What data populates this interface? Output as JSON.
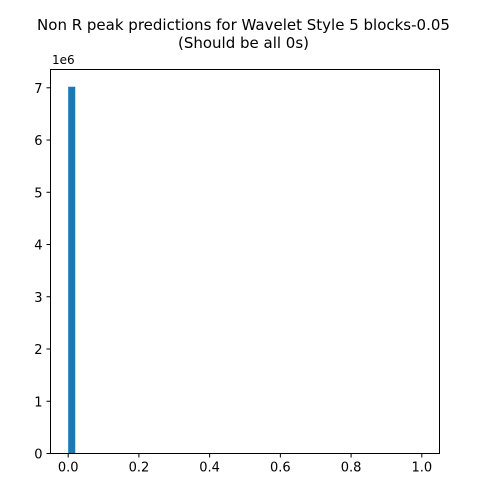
{
  "chart_data": {
    "type": "bar",
    "title_line1": "Non R peak predictions for Wavelet Style 5 blocks-0.05",
    "title_line2": "(Should be all 0s)",
    "xlabel": "",
    "ylabel": "",
    "y_offset_label": "1e6",
    "xlim": [
      -0.05,
      1.05
    ],
    "ylim": [
      0,
      7350000
    ],
    "x_ticks": [
      0.0,
      0.2,
      0.4,
      0.6,
      0.8,
      1.0
    ],
    "x_tick_labels": [
      "0.0",
      "0.2",
      "0.4",
      "0.6",
      "0.8",
      "1.0"
    ],
    "y_ticks": [
      0,
      1000000,
      2000000,
      3000000,
      4000000,
      5000000,
      6000000,
      7000000
    ],
    "y_tick_labels": [
      "0",
      "1",
      "2",
      "3",
      "4",
      "5",
      "6",
      "7"
    ],
    "bins": [
      {
        "x0": 0.0,
        "x1": 0.02,
        "value": 7020000
      }
    ],
    "bar_color": "#1f77b4",
    "grid": false,
    "legend": false
  }
}
